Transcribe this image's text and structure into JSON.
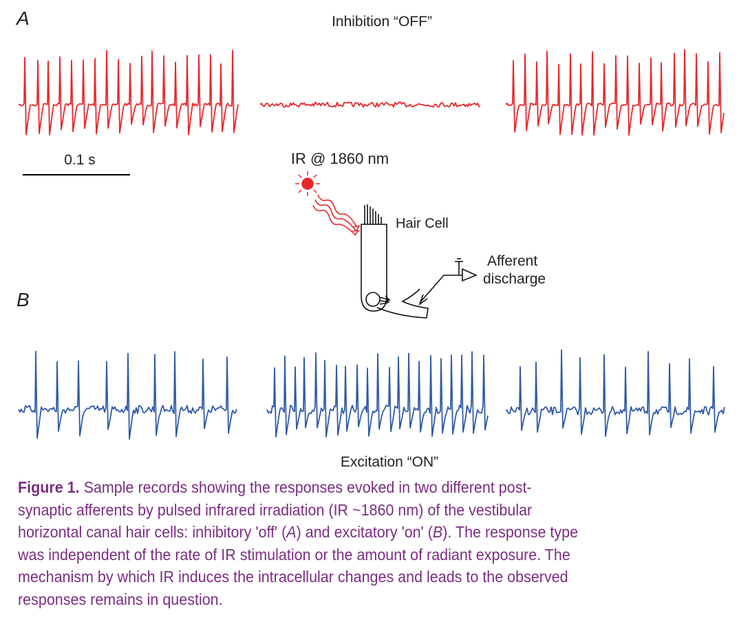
{
  "panels": {
    "a_label": "A",
    "a_title": "Inhibition “OFF”",
    "scale_bar": "0.1 s",
    "b_label": "B",
    "b_title": "Excitation “ON”"
  },
  "diagram": {
    "stimulus": "IR @ 1860 nm",
    "cell": "Hair Cell",
    "unknown": "?",
    "recording": [
      "Afferent",
      "discharge"
    ]
  },
  "caption": {
    "label": "Figure 1.",
    "lines": [
      " Sample records showing the responses evoked in two different post-",
      "synaptic afferents by pulsed infrared irradiation (IR ~1860 nm) of the vestibular",
      [
        "horizontal canal hair cells: inhibitory 'off' (",
        "A",
        ") and excitatory 'on' (",
        "B",
        "). The response type"
      ],
      "was independent of the rate of IR stimulation or the amount of radiant exposure. The",
      "mechanism by which IR induces the intracellular changes and leads to the observed",
      "responses remains in question."
    ]
  }
}
